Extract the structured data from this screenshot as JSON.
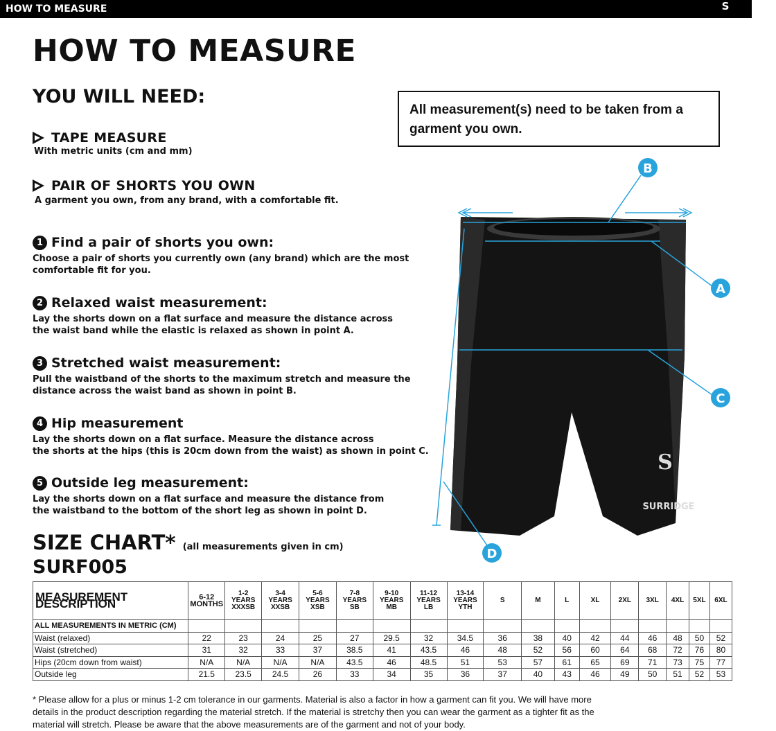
{
  "header": {
    "bar_title": "HOW TO MEASURE",
    "logo_text": "SURRIDGE"
  },
  "title": "HOW TO MEASURE",
  "you_will_need": {
    "heading": "YOU WILL NEED:",
    "items": [
      {
        "title": "TAPE MEASURE",
        "desc": "With metric units (cm and mm)"
      },
      {
        "title": "PAIR OF SHORTS YOU OWN",
        "desc": "A garment you own, from any brand, with a comfortable fit."
      }
    ]
  },
  "notice": "All measurement(s) need to be taken from a garment you own.",
  "steps": [
    {
      "num": "1",
      "title": "Find a pair of shorts you own:",
      "desc1": "Choose a pair of shorts you currently own (any brand) which are the most",
      "desc2": "comfortable fit for you."
    },
    {
      "num": "2",
      "title": "Relaxed waist measurement:",
      "desc1": "Lay the shorts down on a flat surface and measure the distance across",
      "desc2": "the waist band while the elastic is relaxed as shown in point A."
    },
    {
      "num": "3",
      "title": "Stretched waist measurement:",
      "desc1": "Pull the waistband of the shorts to the maximum stretch and measure the",
      "desc2": "distance across the waist band as shown in point B."
    },
    {
      "num": "4",
      "title": "Hip measurement",
      "desc1": "Lay the shorts down on a flat surface. Measure the distance across",
      "desc2": "the shorts at the hips (this is 20cm down from the waist)  as shown in point C."
    },
    {
      "num": "5",
      "title": "Outside leg measurement:",
      "desc1": "Lay the shorts down on a flat surface and measure the distance from",
      "desc2": "the waistband to the bottom of the short leg as shown in point D."
    }
  ],
  "diagram": {
    "points": [
      "A",
      "B",
      "C",
      "D"
    ],
    "accent": "#29a3dc",
    "garment_logo": "SURRIDGE"
  },
  "size_chart": {
    "title": "SIZE CHART*",
    "unit_note": "(all measurements given in cm)",
    "code": "SURF005",
    "header_label": "MEASUREMENT DESCRIPTION",
    "sizes": [
      [
        "6-12",
        "MONTHS",
        ""
      ],
      [
        "1-2",
        "YEARS",
        "XXXSB"
      ],
      [
        "3-4",
        "YEARS",
        "XXSB"
      ],
      [
        "5-6",
        "YEARS",
        "XSB"
      ],
      [
        "7-8",
        "YEARS",
        "SB"
      ],
      [
        "9-10",
        "YEARS",
        "MB"
      ],
      [
        "11-12",
        "YEARS",
        "LB"
      ],
      [
        "13-14",
        "YEARS",
        "YTH"
      ],
      [
        "S"
      ],
      [
        "M"
      ],
      [
        "L"
      ],
      [
        "XL"
      ],
      [
        "2XL"
      ],
      [
        "3XL"
      ],
      [
        "4XL"
      ],
      [
        "5XL"
      ],
      [
        "6XL"
      ]
    ],
    "section_label": "ALL MEASUREMENTS IN METRIC (CM)",
    "rows": [
      {
        "label": "Waist (relaxed)",
        "values": [
          "22",
          "23",
          "24",
          "25",
          "27",
          "29.5",
          "32",
          "34.5",
          "36",
          "38",
          "40",
          "42",
          "44",
          "46",
          "48",
          "50",
          "52"
        ]
      },
      {
        "label": "Waist (stretched)",
        "values": [
          "31",
          "32",
          "33",
          "37",
          "38.5",
          "41",
          "43.5",
          "46",
          "48",
          "52",
          "56",
          "60",
          "64",
          "68",
          "72",
          "76",
          "80"
        ]
      },
      {
        "label": "Hips (20cm down from waist)",
        "values": [
          "N/A",
          "N/A",
          "N/A",
          "N/A",
          "43.5",
          "46",
          "48.5",
          "51",
          "53",
          "57",
          "61",
          "65",
          "69",
          "71",
          "73",
          "75",
          "77"
        ]
      },
      {
        "label": "Outside leg",
        "values": [
          "21.5",
          "23.5",
          "24.5",
          "26",
          "33",
          "34",
          "35",
          "36",
          "37",
          "40",
          "43",
          "46",
          "49",
          "50",
          "51",
          "52",
          "53"
        ]
      }
    ]
  },
  "footnote": "* Please allow for a plus or minus 1-2 cm tolerance in our garments. Material is also a factor in how a garment can fit you. We will have more details in the product description regarding the material stretch.  If the material is stretchy then you can wear the garment as a tighter fit as the material will stretch.  Please be aware that the above measurements are of the garment and not of your body."
}
